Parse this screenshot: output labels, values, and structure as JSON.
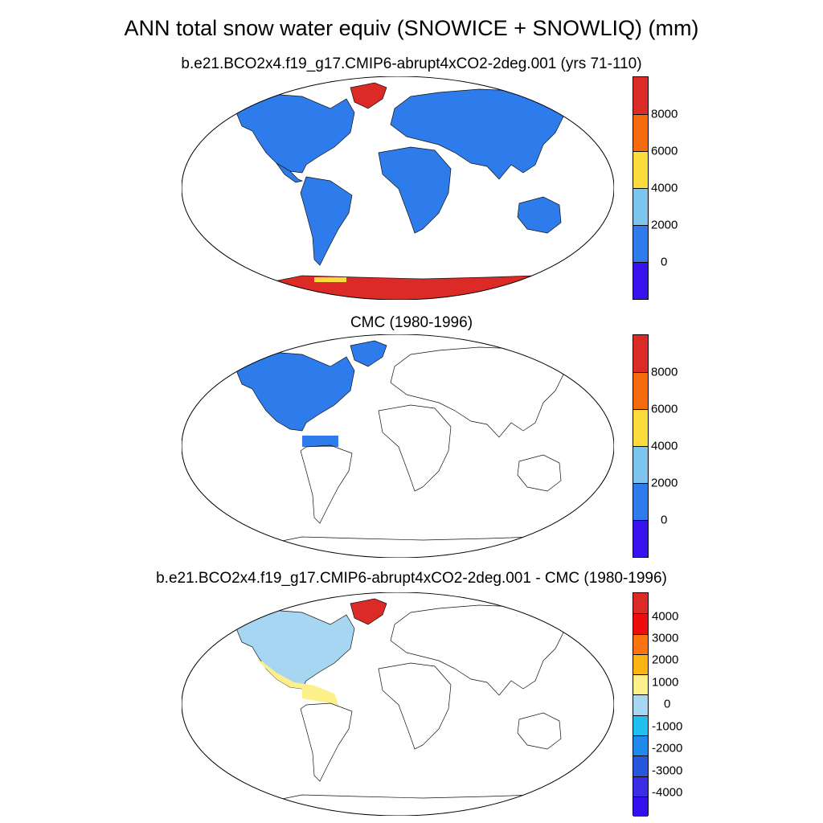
{
  "main_title": "ANN total snow water equiv (SNOWICE + SNOWLIQ) (mm)",
  "panels": [
    {
      "title": "b.e21.BCO2x4.f19_g17.CMIP6-abrupt4xCO2-2deg.001 (yrs 71-110)",
      "colorbar": {
        "colors": [
          "#dc2a27",
          "#f46a0c",
          "#fbdc3d",
          "#7dc5ee",
          "#2e7ceb",
          "#3a12ee"
        ],
        "labels": [
          "8000",
          "6000",
          "4000",
          "2000",
          "0"
        ]
      }
    },
    {
      "title": "CMC (1980-1996)",
      "colorbar": {
        "colors": [
          "#dc2a27",
          "#f46a0c",
          "#fbdc3d",
          "#7dc5ee",
          "#2e7ceb",
          "#3a12ee"
        ],
        "labels": [
          "8000",
          "6000",
          "4000",
          "2000",
          "0"
        ]
      }
    },
    {
      "title": "b.e21.BCO2x4.f19_g17.CMIP6-abrupt4xCO2-2deg.001 - CMC (1980-1996)",
      "colorbar": {
        "colors": [
          "#dc2a27",
          "#ee0d0d",
          "#fb7410",
          "#fcb314",
          "#fdf08a",
          "#a6d6f1",
          "#1fc0f0",
          "#1f8aeb",
          "#2758dc",
          "#3b2de5",
          "#3510ee"
        ],
        "labels": [
          "4000",
          "3000",
          "2000",
          "1000",
          "0",
          "-1000",
          "-2000",
          "-3000",
          "-4000"
        ]
      }
    }
  ],
  "colors": {
    "land_fill": "#2e7ceb",
    "ice_fill": "#dc2a27",
    "diff_snow_fill": "#a6d6f1",
    "diff_low_fill": "#fdf08a"
  }
}
